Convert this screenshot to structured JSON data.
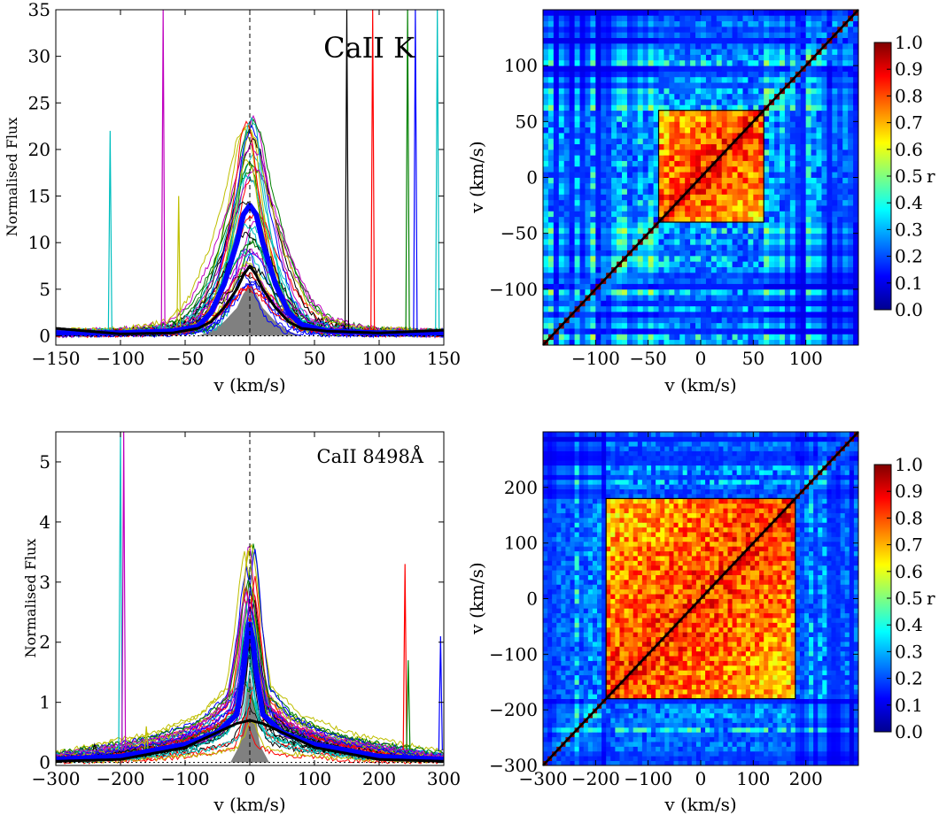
{
  "colors": {
    "mean": "#0000ff",
    "median": "#000000",
    "shade": "#808080",
    "spectra": [
      "#ff0000",
      "#008000",
      "#0000ff",
      "#00bfbf",
      "#bf00bf",
      "#bfbf00",
      "#000000"
    ]
  },
  "chart_data": [
    {
      "id": "caii-k-profiles",
      "type": "line",
      "title": "",
      "annotation": "CaII K",
      "xlabel": "v (km/s)",
      "ylabel": "Normalised Flux",
      "xlim": [
        -150,
        150
      ],
      "ylim": [
        -1,
        35
      ],
      "xticks": [
        -150,
        -100,
        -50,
        0,
        50,
        100,
        150
      ],
      "xtick_labels": [
        "−150",
        "−100",
        "−50",
        "0",
        "50",
        "100",
        "150"
      ],
      "yticks": [
        0,
        5,
        10,
        15,
        20,
        25,
        30,
        35
      ],
      "ytick_labels": [
        "0",
        "5",
        "10",
        "15",
        "20",
        "25",
        "30",
        "35"
      ],
      "series": [
        {
          "role": "mean",
          "x": [
            -150,
            -100,
            -60,
            -40,
            -30,
            -20,
            -10,
            -5,
            0,
            5,
            10,
            20,
            30,
            40,
            60,
            100,
            150
          ],
          "values": [
            0.3,
            0.3,
            0.5,
            1.0,
            2.5,
            5.5,
            10.0,
            13.0,
            14.0,
            13.0,
            10.0,
            5.5,
            2.5,
            1.2,
            0.5,
            0.3,
            0.3
          ]
        },
        {
          "role": "median",
          "x": [
            -150,
            -100,
            -60,
            -40,
            -30,
            -20,
            -10,
            -5,
            0,
            5,
            10,
            20,
            30,
            40,
            60,
            100,
            150
          ],
          "values": [
            0.8,
            0.2,
            0.3,
            0.8,
            1.5,
            3.0,
            5.0,
            6.5,
            7.5,
            6.5,
            5.0,
            3.0,
            1.5,
            0.8,
            0.5,
            0.3,
            0.6
          ]
        },
        {
          "role": "minimum",
          "x": [
            -150,
            -40,
            -30,
            -20,
            -10,
            -5,
            0,
            5,
            10,
            20,
            30,
            40,
            150
          ],
          "values": [
            0,
            0,
            0.5,
            1.5,
            3.0,
            4.5,
            5.5,
            4.5,
            3.0,
            1.5,
            0.5,
            0,
            0
          ]
        }
      ],
      "reference_lines": {
        "vertical_x": 0,
        "horizontal_y": 0
      }
    },
    {
      "id": "caii-k-correlation",
      "type": "heatmap",
      "title": "",
      "xlabel": "v (km/s)",
      "ylabel": "v (km/s)",
      "xlim": [
        -150,
        150
      ],
      "ylim": [
        -150,
        150
      ],
      "xticks": [
        -100,
        -50,
        0,
        50,
        100
      ],
      "xtick_labels": [
        "−100",
        "−50",
        "0",
        "50",
        "100"
      ],
      "yticks": [
        -100,
        -50,
        0,
        50,
        100
      ],
      "ytick_labels": [
        "−100",
        "−50",
        "0",
        "50",
        "100"
      ],
      "core_v": [
        -40,
        60
      ],
      "colorbar": {
        "label": "r",
        "min": 0.0,
        "max": 1.0,
        "ticks": [
          "0.0",
          "0.1",
          "0.2",
          "0.3",
          "0.4",
          "0.5",
          "0.6",
          "0.7",
          "0.8",
          "0.9",
          "1.0"
        ]
      }
    },
    {
      "id": "caii-8498-profiles",
      "type": "line",
      "title": "",
      "annotation": "CaII 8498Å",
      "xlabel": "v (km/s)",
      "ylabel": "Normalised Flux",
      "xlim": [
        -300,
        300
      ],
      "ylim": [
        -0.05,
        5.5
      ],
      "xticks": [
        -300,
        -200,
        -100,
        0,
        100,
        200,
        300
      ],
      "xtick_labels": [
        "−300",
        "−200",
        "−100",
        "0",
        "100",
        "200",
        "300"
      ],
      "yticks": [
        0,
        1,
        2,
        3,
        4,
        5
      ],
      "ytick_labels": [
        "0",
        "1",
        "2",
        "3",
        "4",
        "5"
      ],
      "series": [
        {
          "role": "mean",
          "x": [
            -300,
            -200,
            -100,
            -50,
            -20,
            -10,
            -5,
            0,
            5,
            10,
            20,
            50,
            100,
            200,
            300
          ],
          "values": [
            0.05,
            0.1,
            0.3,
            0.5,
            0.8,
            1.5,
            2.0,
            2.3,
            2.0,
            1.5,
            0.8,
            0.5,
            0.3,
            0.1,
            0.05
          ]
        },
        {
          "role": "median",
          "x": [
            -300,
            -200,
            -100,
            -50,
            -20,
            0,
            20,
            50,
            100,
            200,
            300
          ],
          "values": [
            0.02,
            0.05,
            0.25,
            0.5,
            0.65,
            0.7,
            0.65,
            0.5,
            0.25,
            0.05,
            0.02
          ]
        },
        {
          "role": "minimum",
          "x": [
            -300,
            -30,
            -15,
            -8,
            0,
            8,
            15,
            30,
            300
          ],
          "values": [
            0,
            0,
            0.3,
            0.9,
            1.5,
            0.9,
            0.3,
            0,
            0
          ]
        }
      ],
      "reference_lines": {
        "vertical_x": 0,
        "horizontal_y": 0
      }
    },
    {
      "id": "caii-8498-correlation",
      "type": "heatmap",
      "title": "",
      "xlabel": "v (km/s)",
      "ylabel": "v (km/s)",
      "xlim": [
        -300,
        300
      ],
      "ylim": [
        -300,
        300
      ],
      "xticks": [
        -300,
        -200,
        -100,
        0,
        100,
        200
      ],
      "xtick_labels": [
        "−300",
        "−200",
        "−100",
        "0",
        "100",
        "200"
      ],
      "yticks": [
        -300,
        -200,
        -100,
        0,
        100,
        200
      ],
      "ytick_labels": [
        "−300",
        "−200",
        "−100",
        "0",
        "100",
        "200"
      ],
      "core_v": [
        -180,
        180
      ],
      "colorbar": {
        "label": "r",
        "min": 0.0,
        "max": 1.0,
        "ticks": [
          "0.0",
          "0.1",
          "0.2",
          "0.3",
          "0.4",
          "0.5",
          "0.6",
          "0.7",
          "0.8",
          "0.9",
          "1.0"
        ]
      }
    }
  ]
}
